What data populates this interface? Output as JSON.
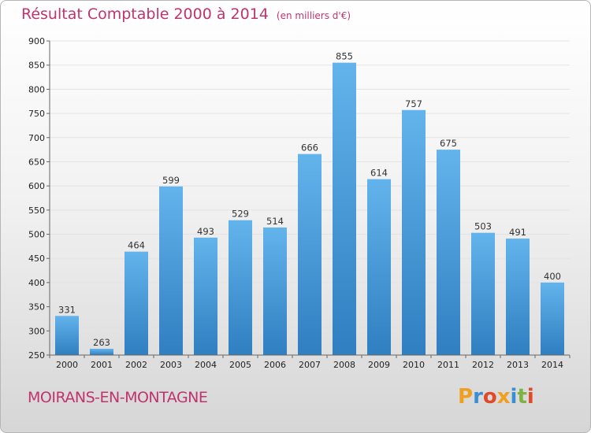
{
  "title": "Résultat Comptable 2000 à 2014",
  "subtitle": "(en milliers d'€)",
  "commune": "MOIRANS-EN-MONTAGNE",
  "logo": {
    "text": "Proxiti",
    "colors": [
      "#f0a020",
      "#3a8fd0",
      "#e04a2a",
      "#f0a020",
      "#3a8fd0",
      "#7cb342",
      "#e04a2a"
    ]
  },
  "colors": {
    "bar_light": "#63b3ec",
    "bar_dark": "#2f7fc1",
    "title": "#c0336f"
  },
  "chart_data": {
    "type": "bar",
    "categories": [
      "2000",
      "2001",
      "2002",
      "2003",
      "2004",
      "2005",
      "2006",
      "2007",
      "2008",
      "2009",
      "2010",
      "2011",
      "2012",
      "2013",
      "2014"
    ],
    "values": [
      331,
      263,
      464,
      599,
      493,
      529,
      514,
      666,
      855,
      614,
      757,
      675,
      503,
      491,
      400
    ],
    "ylim": [
      250,
      900
    ],
    "yticks": [
      250,
      300,
      350,
      400,
      450,
      500,
      550,
      600,
      650,
      700,
      750,
      800,
      850,
      900
    ],
    "grid": true
  }
}
